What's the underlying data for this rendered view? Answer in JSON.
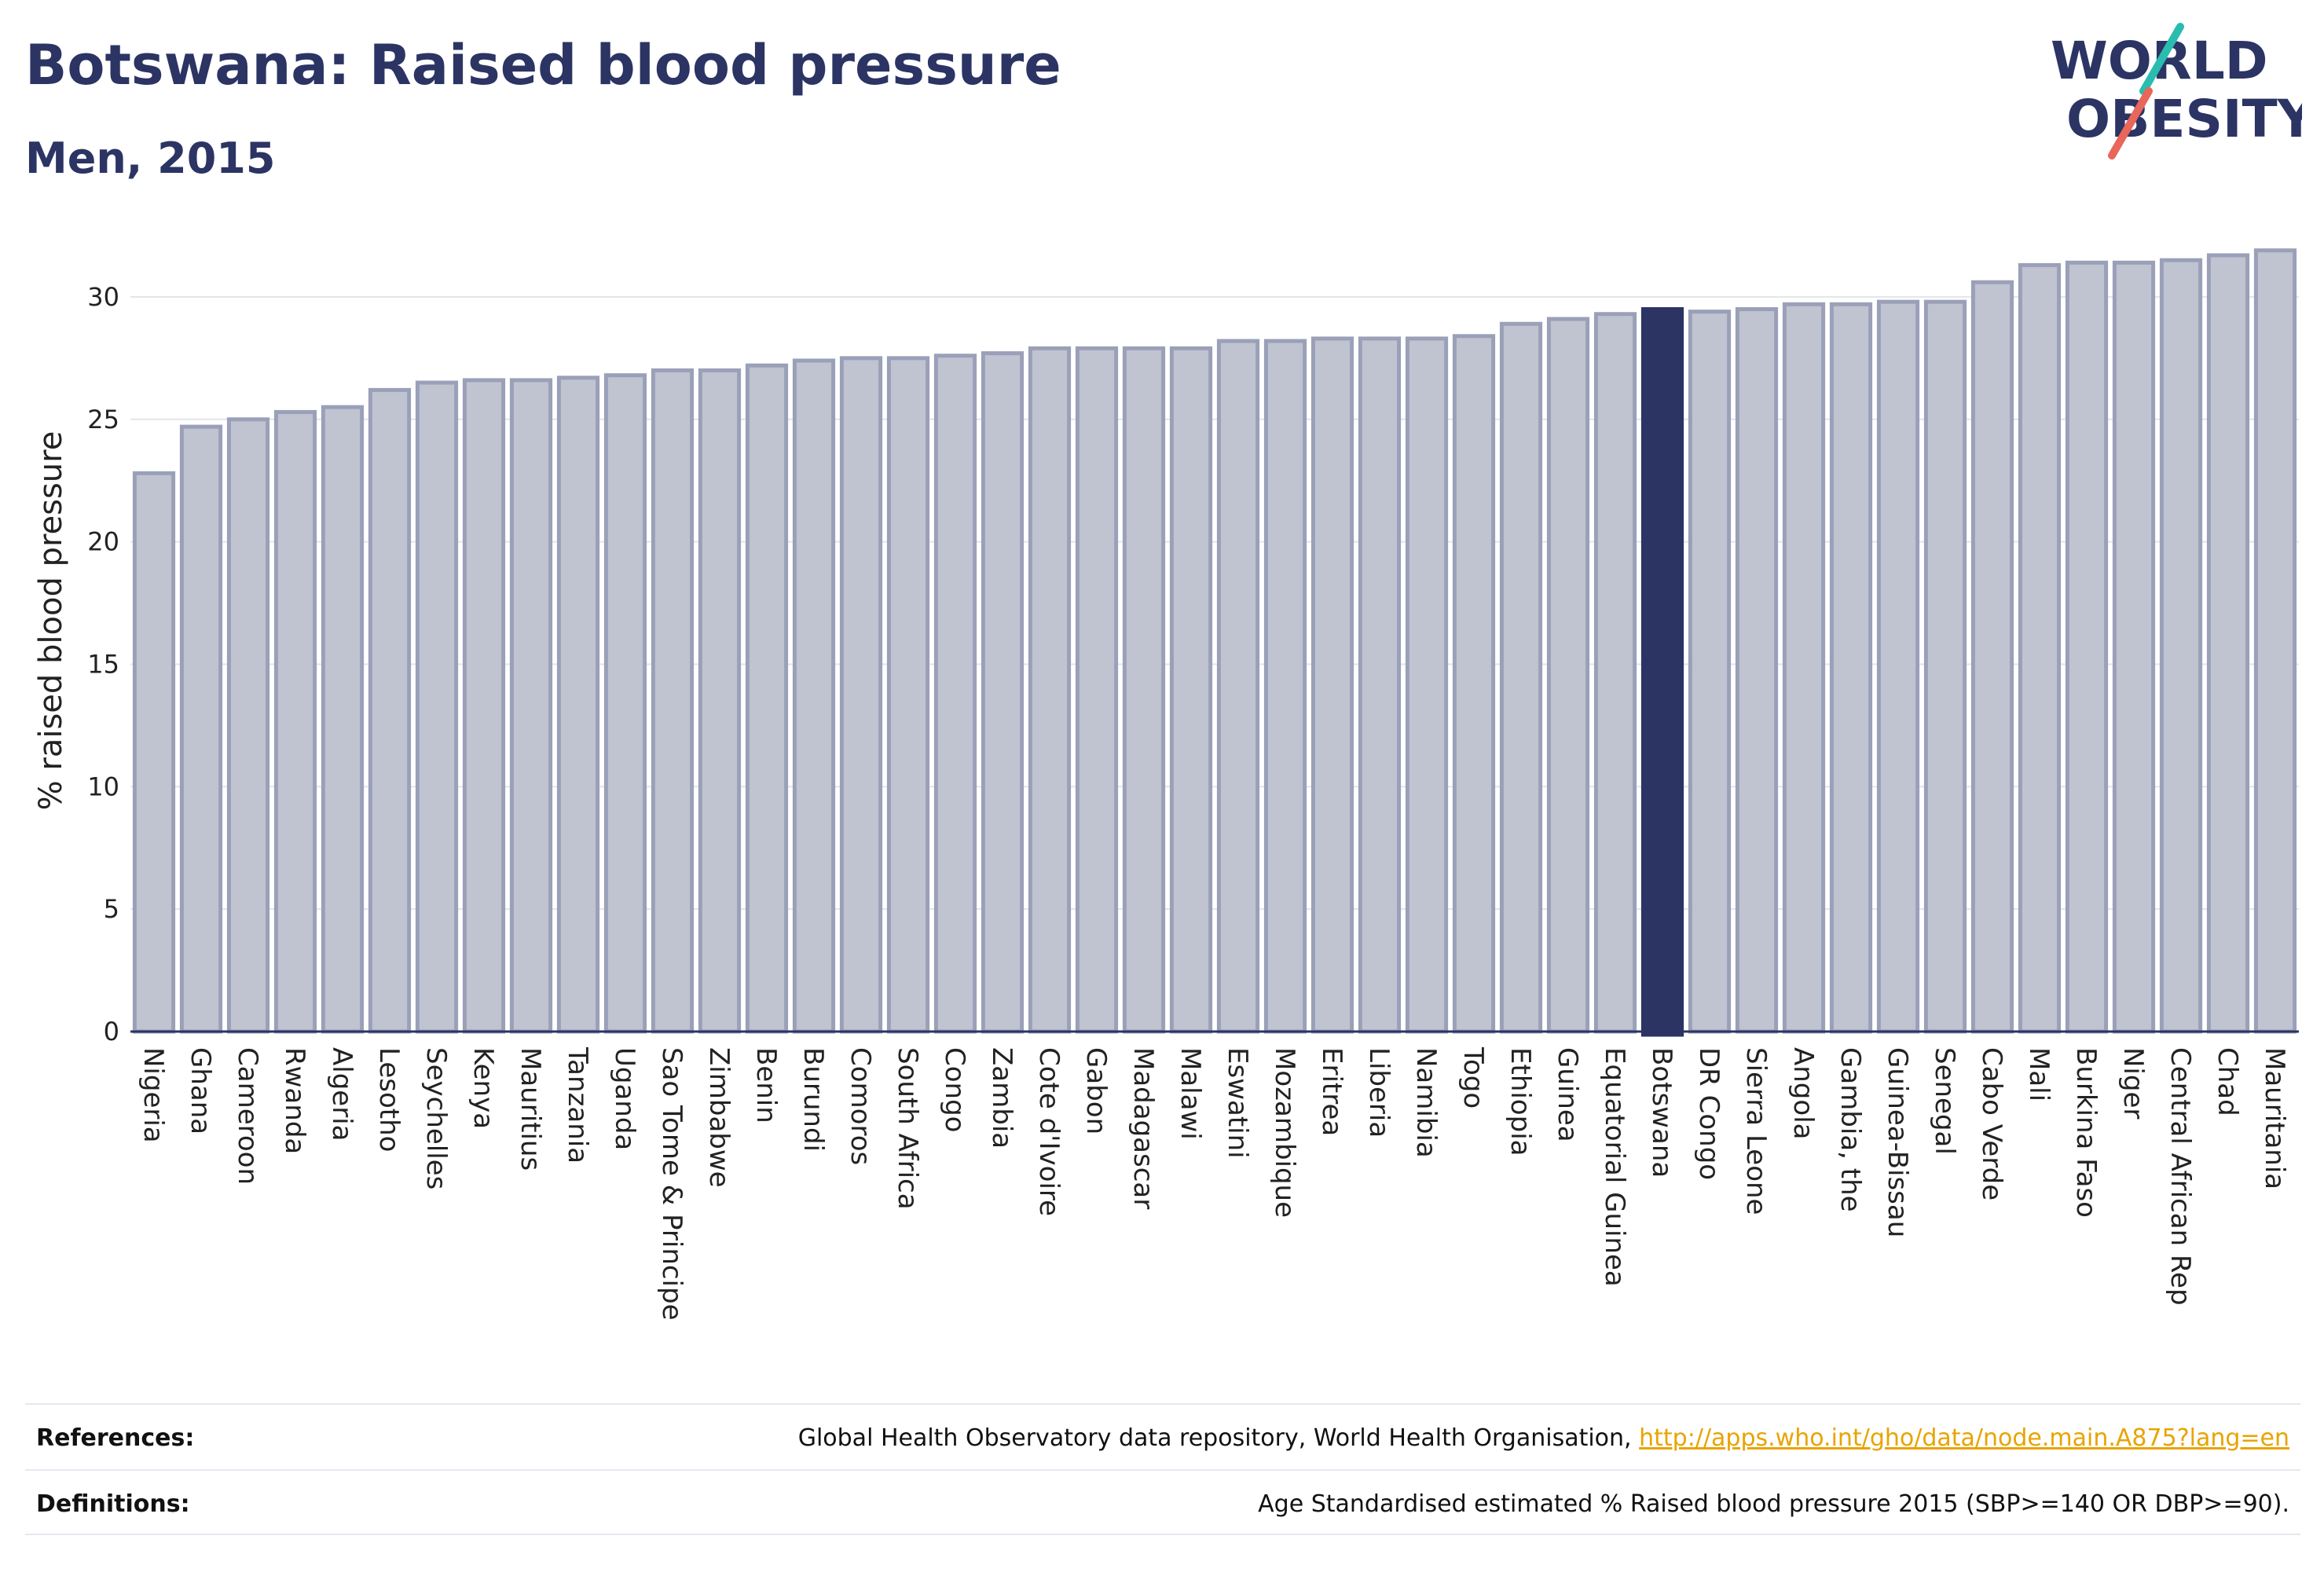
{
  "header": {
    "title": "Botswana: Raised blood pressure",
    "subtitle": "Men, 2015"
  },
  "logo": {
    "line1": "WORLD",
    "line2": "OBESITY"
  },
  "colors": {
    "bar_fill": "#c0c3d0",
    "bar_stroke": "#9aa0b8",
    "highlight": "#2b3463",
    "title": "#2b3463",
    "logo_teal": "#2bbcb0",
    "logo_coral": "#e8665a",
    "link": "#e8a400"
  },
  "chart_data": {
    "type": "bar",
    "title": "Botswana: Raised blood pressure",
    "subtitle": "Men, 2015",
    "xlabel": "",
    "ylabel": "% raised blood pressure",
    "ylim": [
      0,
      32.5
    ],
    "yticks": [
      0,
      5,
      10,
      15,
      20,
      25,
      30
    ],
    "grid": true,
    "highlight": "Botswana",
    "categories": [
      "Nigeria",
      "Ghana",
      "Cameroon",
      "Rwanda",
      "Algeria",
      "Lesotho",
      "Seychelles",
      "Kenya",
      "Mauritius",
      "Tanzania",
      "Uganda",
      "Sao Tome & Principe",
      "Zimbabwe",
      "Benin",
      "Burundi",
      "Comoros",
      "South Africa",
      "Congo",
      "Zambia",
      "Cote d'Ivoire",
      "Gabon",
      "Madagascar",
      "Malawi",
      "Eswatini",
      "Mozambique",
      "Eritrea",
      "Liberia",
      "Namibia",
      "Togo",
      "Ethiopia",
      "Guinea",
      "Equatorial Guinea",
      "Botswana",
      "DR Congo",
      "Sierra Leone",
      "Angola",
      "Gambia, the",
      "Guinea-Bissau",
      "Senegal",
      "Cabo Verde",
      "Mali",
      "Burkina Faso",
      "Niger",
      "Central African Rep",
      "Chad",
      "Mauritania"
    ],
    "values": [
      22.8,
      24.7,
      25.0,
      25.3,
      25.5,
      26.2,
      26.5,
      26.6,
      26.6,
      26.7,
      26.8,
      27.0,
      27.0,
      27.2,
      27.4,
      27.5,
      27.5,
      27.6,
      27.7,
      27.9,
      27.9,
      27.9,
      27.9,
      28.2,
      28.2,
      28.3,
      28.3,
      28.3,
      28.4,
      28.9,
      29.1,
      29.3,
      29.5,
      29.4,
      29.5,
      29.7,
      29.7,
      29.8,
      29.8,
      30.6,
      31.3,
      31.4,
      31.4,
      31.5,
      31.7,
      31.9
    ]
  },
  "footer": {
    "references_label": "References:",
    "references_text": "Global Health Observatory data repository, World Health Organisation,",
    "references_link": "http://apps.who.int/gho/data/node.main.A875?lang=en",
    "definitions_label": "Definitions:",
    "definitions_text": "Age Standardised estimated % Raised blood pressure 2015 (SBP>=140 OR DBP>=90)."
  }
}
